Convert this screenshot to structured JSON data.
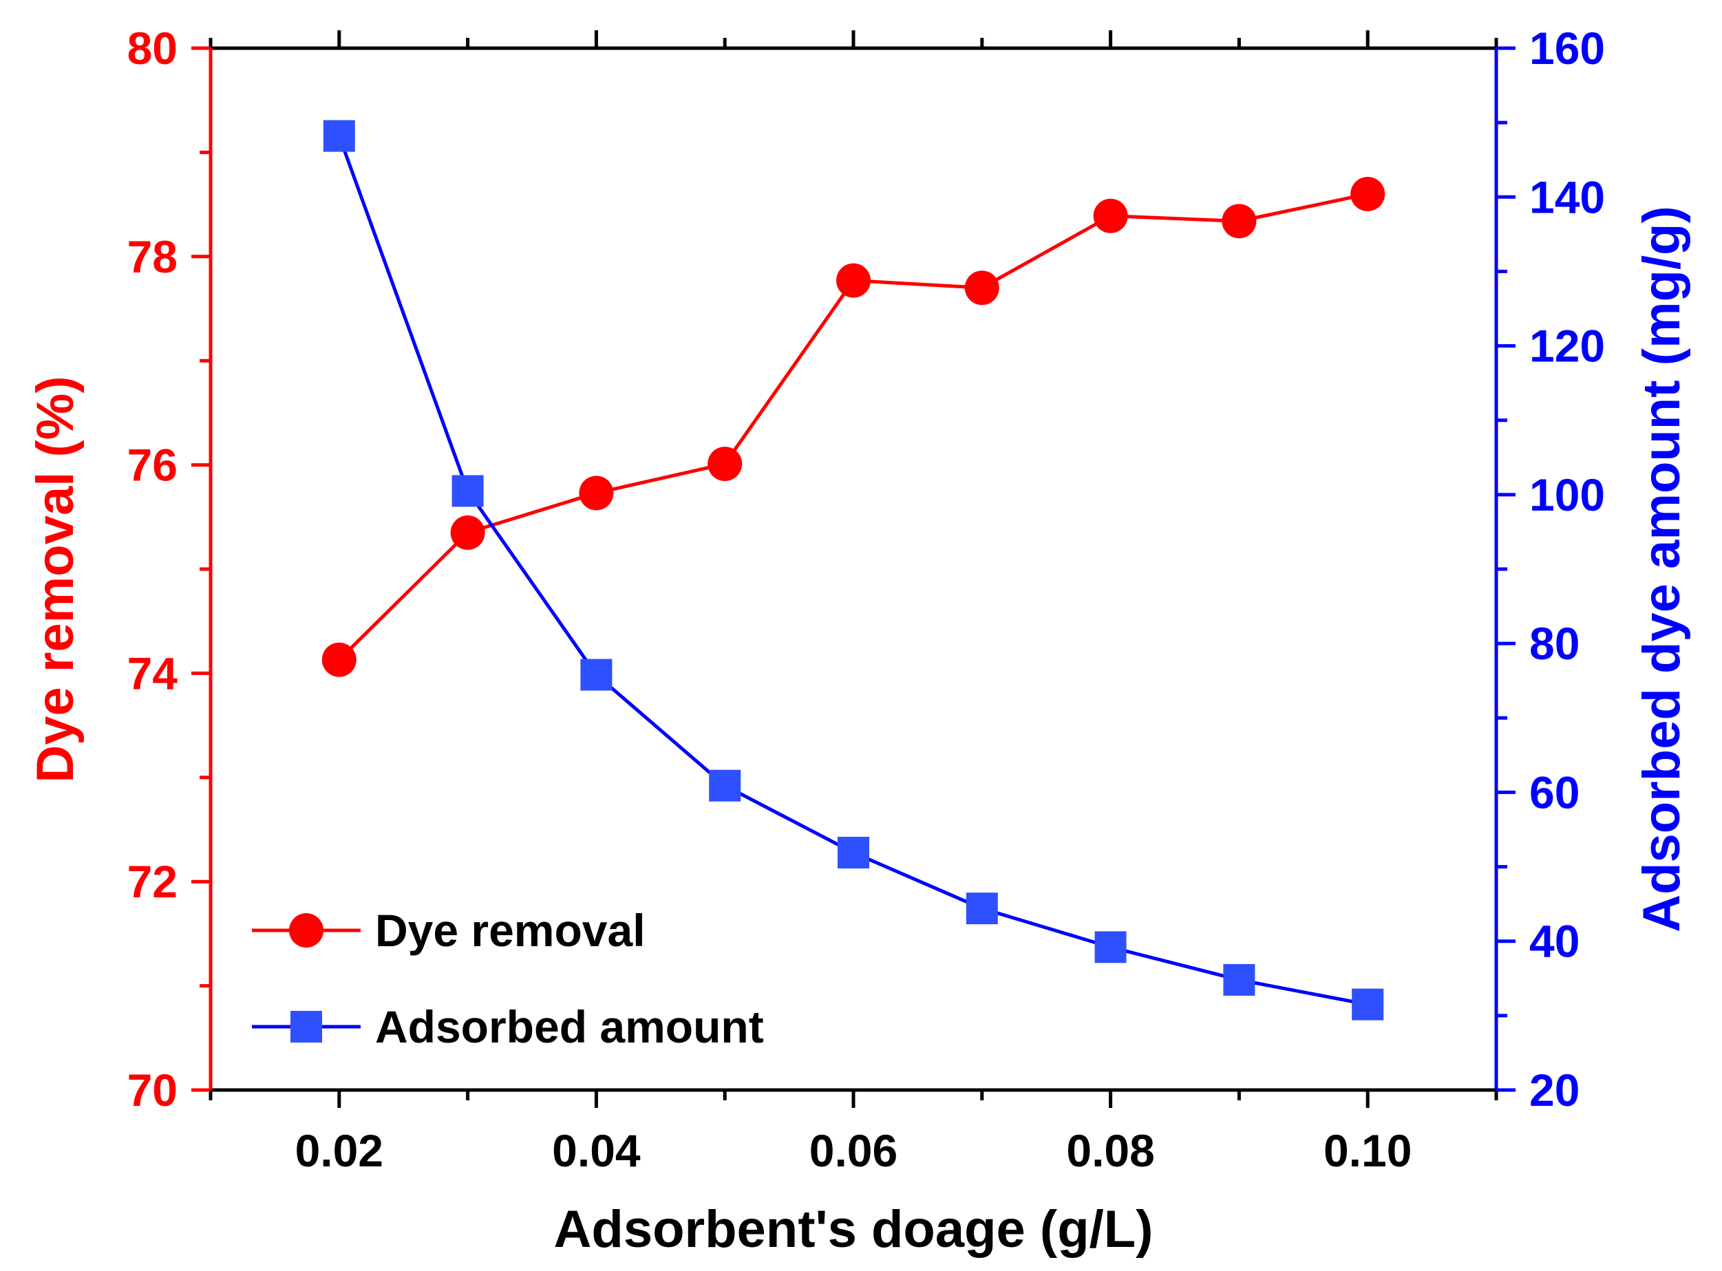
{
  "chart_data": {
    "type": "line",
    "title": "",
    "xlabel": "Adsorbent's doage (g/L)",
    "ylabel_left": "Dye removal (%)",
    "ylabel_right": "Adsorbed dye amount (mg/g)",
    "xlim": [
      0.01,
      0.11
    ],
    "xticks": [
      "0.02",
      "0.04",
      "0.06",
      "0.08",
      "0.10"
    ],
    "xtick_values": [
      0.02,
      0.04,
      0.06,
      0.08,
      0.1
    ],
    "ylim_left": [
      70,
      80
    ],
    "yticks_left": [
      "70",
      "72",
      "74",
      "76",
      "78",
      "80"
    ],
    "ylim_right": [
      20,
      160
    ],
    "yticks_right": [
      "20",
      "40",
      "60",
      "80",
      "100",
      "120",
      "140",
      "160"
    ],
    "grid": false,
    "legend_position": "bottom-left",
    "x": [
      0.02,
      0.03,
      0.04,
      0.05,
      0.06,
      0.07,
      0.08,
      0.09,
      0.1
    ],
    "series": [
      {
        "name": "Dye removal",
        "axis": "left",
        "marker": "circle",
        "color": "#ff0000",
        "values": [
          74.13,
          75.35,
          75.73,
          76.01,
          77.77,
          77.7,
          78.39,
          78.34,
          78.6
        ]
      },
      {
        "name": "Adsorbed amount",
        "axis": "right",
        "marker": "square",
        "color": "#0000ff",
        "values": [
          148.2,
          100.5,
          75.8,
          60.9,
          51.9,
          44.4,
          39.2,
          34.8,
          31.5
        ]
      }
    ]
  },
  "colors": {
    "left_axis": "#ff0000",
    "right_axis": "#0000ff",
    "square_marker": "#2e50ff",
    "frame": "#000000"
  }
}
